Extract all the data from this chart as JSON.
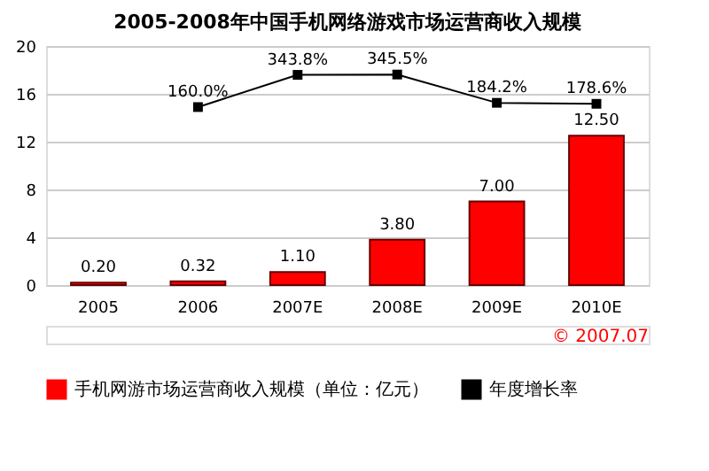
{
  "chart_data": {
    "type": "bar",
    "title": "2005-2008年中国手机网络游戏市场运营商收入规模",
    "categories": [
      "2005",
      "2006",
      "2007E",
      "2008E",
      "2009E",
      "2010E"
    ],
    "series": [
      {
        "name": "手机网游市场运营商收入规模（单位：亿元）",
        "color": "#ff0000",
        "values": [
          0.2,
          0.32,
          1.1,
          3.8,
          7.0,
          12.5
        ],
        "value_labels": [
          "0.20",
          "0.32",
          "1.10",
          "3.80",
          "7.00",
          "12.50"
        ]
      },
      {
        "name": "年度增长率",
        "type": "line",
        "axis": "y2",
        "color": "#000000",
        "marker": "square",
        "values": [
          null,
          160.0,
          343.8,
          345.5,
          184.2,
          178.6
        ],
        "value_labels": [
          null,
          "160.0%",
          "343.8%",
          "345.5%",
          "184.2%",
          "178.6%"
        ]
      }
    ],
    "ylim": [
      0,
      20
    ],
    "yticks": [
      0,
      4,
      8,
      12,
      16,
      20
    ],
    "y2lim": [
      -855,
      508
    ],
    "grid": "y",
    "legend": "bottom",
    "annotations": [
      "© 2007.07"
    ]
  }
}
